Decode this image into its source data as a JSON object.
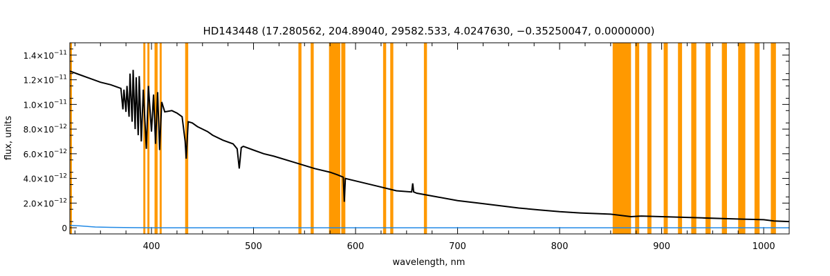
{
  "chart_data": {
    "type": "line",
    "title": "HD143448   (17.280562, 204.89040, 29582.533, 4.0247630, −0.35250047, 0.0000000)",
    "xlabel": "wavelength, nm",
    "ylabel": "flux, units",
    "xlim": [
      320,
      1025
    ],
    "ylim": [
      -5e-13,
      1.5e-11
    ],
    "x_ticks": [
      400,
      500,
      600,
      700,
      800,
      900,
      1000
    ],
    "y_ticks": [
      {
        "value": 0,
        "mant": "0",
        "exp": ""
      },
      {
        "value": 2e-12,
        "mant": "2.0×10",
        "exp": "−12"
      },
      {
        "value": 4e-12,
        "mant": "4.0×10",
        "exp": "−12"
      },
      {
        "value": 6e-12,
        "mant": "6.0×10",
        "exp": "−12"
      },
      {
        "value": 8e-12,
        "mant": "8.0×10",
        "exp": "−12"
      },
      {
        "value": 1e-11,
        "mant": "1.0×10",
        "exp": "−11"
      },
      {
        "value": 1.2e-11,
        "mant": "1.2×10",
        "exp": "−11"
      },
      {
        "value": 1.4e-11,
        "mant": "1.4×10",
        "exp": "−11"
      }
    ],
    "grid": false,
    "colors": {
      "spectrum": "#000000",
      "error": "#1e88e5",
      "mask": "#ff9900"
    },
    "masked_bands_nm": [
      [
        320,
        322
      ],
      [
        392,
        394
      ],
      [
        396,
        398
      ],
      [
        403,
        406
      ],
      [
        408,
        410
      ],
      [
        433,
        436
      ],
      [
        544,
        547
      ],
      [
        556,
        559
      ],
      [
        574,
        585
      ],
      [
        586,
        590
      ],
      [
        627,
        630
      ],
      [
        634,
        637
      ],
      [
        667,
        670
      ],
      [
        852,
        870
      ],
      [
        874,
        878
      ],
      [
        886,
        890
      ],
      [
        902,
        906
      ],
      [
        916,
        920
      ],
      [
        929,
        934
      ],
      [
        943,
        948
      ],
      [
        959,
        964
      ],
      [
        975,
        982
      ],
      [
        991,
        996
      ],
      [
        1007,
        1012
      ]
    ],
    "series": [
      {
        "x": [
          320,
          330,
          340,
          350,
          360,
          370,
          372,
          373,
          375,
          376,
          378,
          379,
          381,
          382,
          384,
          385,
          387,
          388,
          390,
          392,
          395,
          397,
          400,
          402,
          404,
          406,
          408,
          410,
          413,
          420,
          425,
          430,
          433,
          434,
          436,
          440,
          445,
          450,
          455,
          460,
          470,
          480,
          484,
          486,
          488,
          490,
          500,
          510,
          520,
          540,
          560,
          575,
          582,
          588,
          589,
          590,
          600,
          620,
          640,
          655,
          656,
          657,
          660,
          680,
          700,
          720,
          740,
          760,
          780,
          800,
          820,
          850,
          870,
          880,
          900,
          920,
          940,
          960,
          980,
          1000,
          1010,
          1025
        ],
        "y": [
          1.27e-11,
          1.24e-11,
          1.21e-11,
          1.18e-11,
          1.16e-11,
          1.13e-11,
          9.6e-12,
          1.12e-11,
          9.4e-12,
          1.15e-11,
          9e-12,
          1.25e-11,
          8.6e-12,
          1.28e-11,
          8e-12,
          1.22e-11,
          7.5e-12,
          1.23e-11,
          7e-12,
          1.12e-11,
          6.4e-12,
          1.15e-11,
          7.8e-12,
          1.08e-11,
          6.8e-12,
          1.1e-11,
          6.3e-12,
          1.02e-11,
          9.4e-12,
          9.5e-12,
          9.3e-12,
          9e-12,
          7e-12,
          5.6e-12,
          8.6e-12,
          8.5e-12,
          8.2e-12,
          8e-12,
          7.8e-12,
          7.5e-12,
          7.1e-12,
          6.8e-12,
          6.4e-12,
          4.8e-12,
          6.5e-12,
          6.6e-12,
          6.3e-12,
          6e-12,
          5.8e-12,
          5.3e-12,
          4.8e-12,
          4.5e-12,
          4.3e-12,
          4.1e-12,
          2.1e-12,
          4e-12,
          3.8e-12,
          3.4e-12,
          3e-12,
          2.9e-12,
          3.6e-12,
          2.9e-12,
          2.8e-12,
          2.5e-12,
          2.2e-12,
          2e-12,
          1.8e-12,
          1.6e-12,
          1.45e-12,
          1.3e-12,
          1.2e-12,
          1.1e-12,
          9e-13,
          9.5e-13,
          9e-13,
          8.5e-13,
          8e-13,
          7.5e-13,
          7e-13,
          6.5e-13,
          5.5e-13,
          5e-13
        ]
      },
      {
        "x": [
          320,
          330,
          345,
          360,
          380,
          400,
          500,
          600,
          700,
          800,
          900,
          1000,
          1025
        ],
        "y": [
          2e-13,
          1.5e-13,
          6e-14,
          3e-14,
          1e-14,
          0,
          0,
          0,
          0,
          0,
          0,
          0,
          0
        ]
      }
    ]
  }
}
